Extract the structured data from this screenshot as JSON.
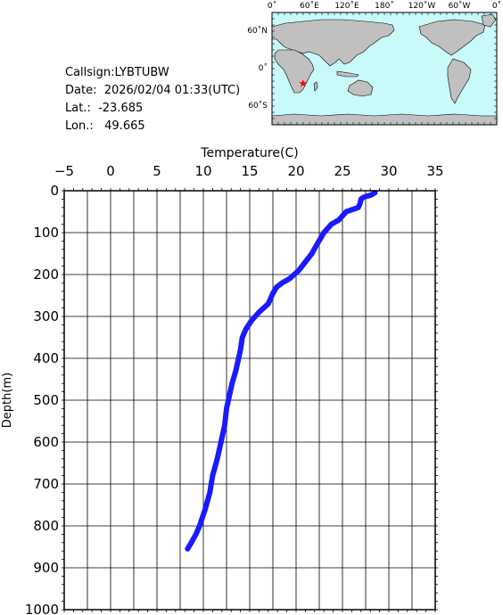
{
  "station": {
    "callsign_label": "Callsign:",
    "callsign": "LYBTUBW",
    "date_label": "Date:",
    "date": "2026/02/04 01:33(UTC)",
    "lat_label": "Lat.:",
    "lat": "-23.685",
    "lon_label": "Lon.:",
    "lon": "49.665"
  },
  "map": {
    "lon_labels": [
      "0˚",
      "60˚E",
      "120˚E",
      "180˚",
      "120˚W",
      "60˚W",
      "0˚"
    ],
    "lat_labels": [
      "60˚N",
      "0˚",
      "60˚S"
    ],
    "marker": {
      "lon": 49.665,
      "lat": -23.685,
      "symbol": "★"
    },
    "colors": {
      "ocean": "#c8fafa",
      "land": "#c0c0c0",
      "marker": "#ff0000"
    }
  },
  "chart_data": {
    "type": "line",
    "xlabel": "Temperature(C)",
    "ylabel": "Depth(m)",
    "xlim": [
      -5,
      35
    ],
    "ylim": [
      0,
      1000
    ],
    "x_ticks": [
      -5,
      0,
      5,
      10,
      15,
      20,
      25,
      30,
      35
    ],
    "y_ticks": [
      0,
      100,
      200,
      300,
      400,
      500,
      600,
      700,
      800,
      900,
      1000
    ],
    "y_inverted": true,
    "grid": true,
    "series": [
      {
        "color": "#1a1aff",
        "points": [
          [
            28.5,
            5
          ],
          [
            28.1,
            10
          ],
          [
            27.3,
            15
          ],
          [
            27.0,
            20
          ],
          [
            26.9,
            30
          ],
          [
            26.7,
            40
          ],
          [
            25.4,
            50
          ],
          [
            25.0,
            60
          ],
          [
            24.6,
            70
          ],
          [
            23.8,
            80
          ],
          [
            23.0,
            100
          ],
          [
            22.2,
            130
          ],
          [
            21.7,
            150
          ],
          [
            21.0,
            170
          ],
          [
            20.3,
            190
          ],
          [
            19.3,
            210
          ],
          [
            18.5,
            220
          ],
          [
            17.9,
            230
          ],
          [
            17.5,
            245
          ],
          [
            17.0,
            270
          ],
          [
            16.0,
            290
          ],
          [
            15.2,
            310
          ],
          [
            14.6,
            330
          ],
          [
            14.2,
            350
          ],
          [
            14.0,
            380
          ],
          [
            13.8,
            400
          ],
          [
            13.5,
            430
          ],
          [
            13.1,
            460
          ],
          [
            12.8,
            490
          ],
          [
            12.5,
            520
          ],
          [
            12.3,
            560
          ],
          [
            11.9,
            600
          ],
          [
            11.5,
            640
          ],
          [
            11.0,
            680
          ],
          [
            10.7,
            720
          ],
          [
            10.2,
            760
          ],
          [
            9.6,
            800
          ],
          [
            9.2,
            820
          ],
          [
            8.7,
            840
          ],
          [
            8.3,
            855
          ]
        ]
      }
    ]
  }
}
